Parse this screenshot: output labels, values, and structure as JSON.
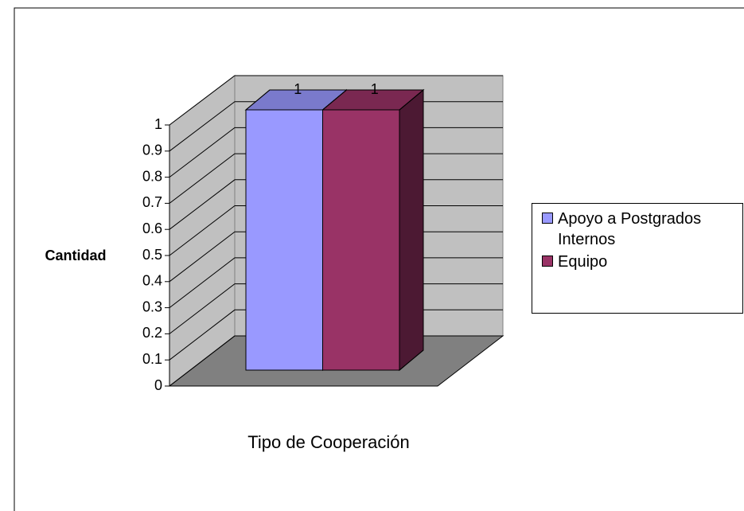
{
  "chart_data": {
    "type": "bar3d",
    "ylabel": "Cantidad",
    "xlabel": "Tipo de Cooperación",
    "series": [
      {
        "name": "Apoyo a Postgrados Internos",
        "color": "#9999ff",
        "values": [
          1
        ]
      },
      {
        "name": "Equipo",
        "color": "#993366",
        "values": [
          1
        ]
      }
    ],
    "ylim": [
      0,
      1
    ],
    "yticks": [
      0,
      0.1,
      0.2,
      0.3,
      0.4,
      0.5,
      0.6,
      0.7,
      0.8,
      0.9,
      1
    ],
    "grid": true,
    "legend": "right"
  }
}
